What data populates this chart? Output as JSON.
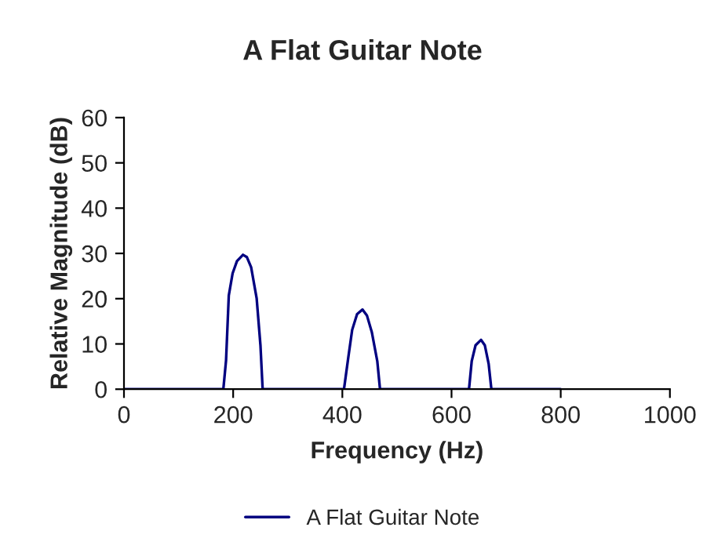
{
  "chart_data": {
    "type": "line",
    "title": "A Flat Guitar Note",
    "xlabel": "Frequency (Hz)",
    "ylabel": "Relative Magnitude (dB)",
    "xlim": [
      0,
      1000
    ],
    "xticks": [
      0,
      200,
      400,
      600,
      800,
      1000
    ],
    "ylim": [
      0,
      60
    ],
    "yticks": [
      0,
      10,
      20,
      30,
      40,
      50,
      60
    ],
    "grid": false,
    "legend": "bottom",
    "marker": "none",
    "line_style": "solid",
    "series": [
      {
        "name": "A Flat Guitar Note",
        "color": "#000080",
        "x": [
          0,
          182,
          187,
          192,
          199,
          207,
          218,
          225,
          233,
          243,
          250,
          254,
          403,
          411,
          418,
          427,
          437,
          445,
          454,
          464,
          469,
          632,
          637,
          644,
          654,
          661,
          668,
          673,
          800
        ],
        "values": [
          0,
          0,
          6.4,
          20.7,
          25.6,
          28.3,
          29.7,
          29.2,
          26.9,
          20.1,
          9.7,
          0,
          0,
          7.1,
          13.1,
          16.6,
          17.6,
          16.3,
          12.6,
          6.2,
          0,
          0,
          6.2,
          9.7,
          10.9,
          9.7,
          5.6,
          0,
          0
        ]
      }
    ]
  }
}
